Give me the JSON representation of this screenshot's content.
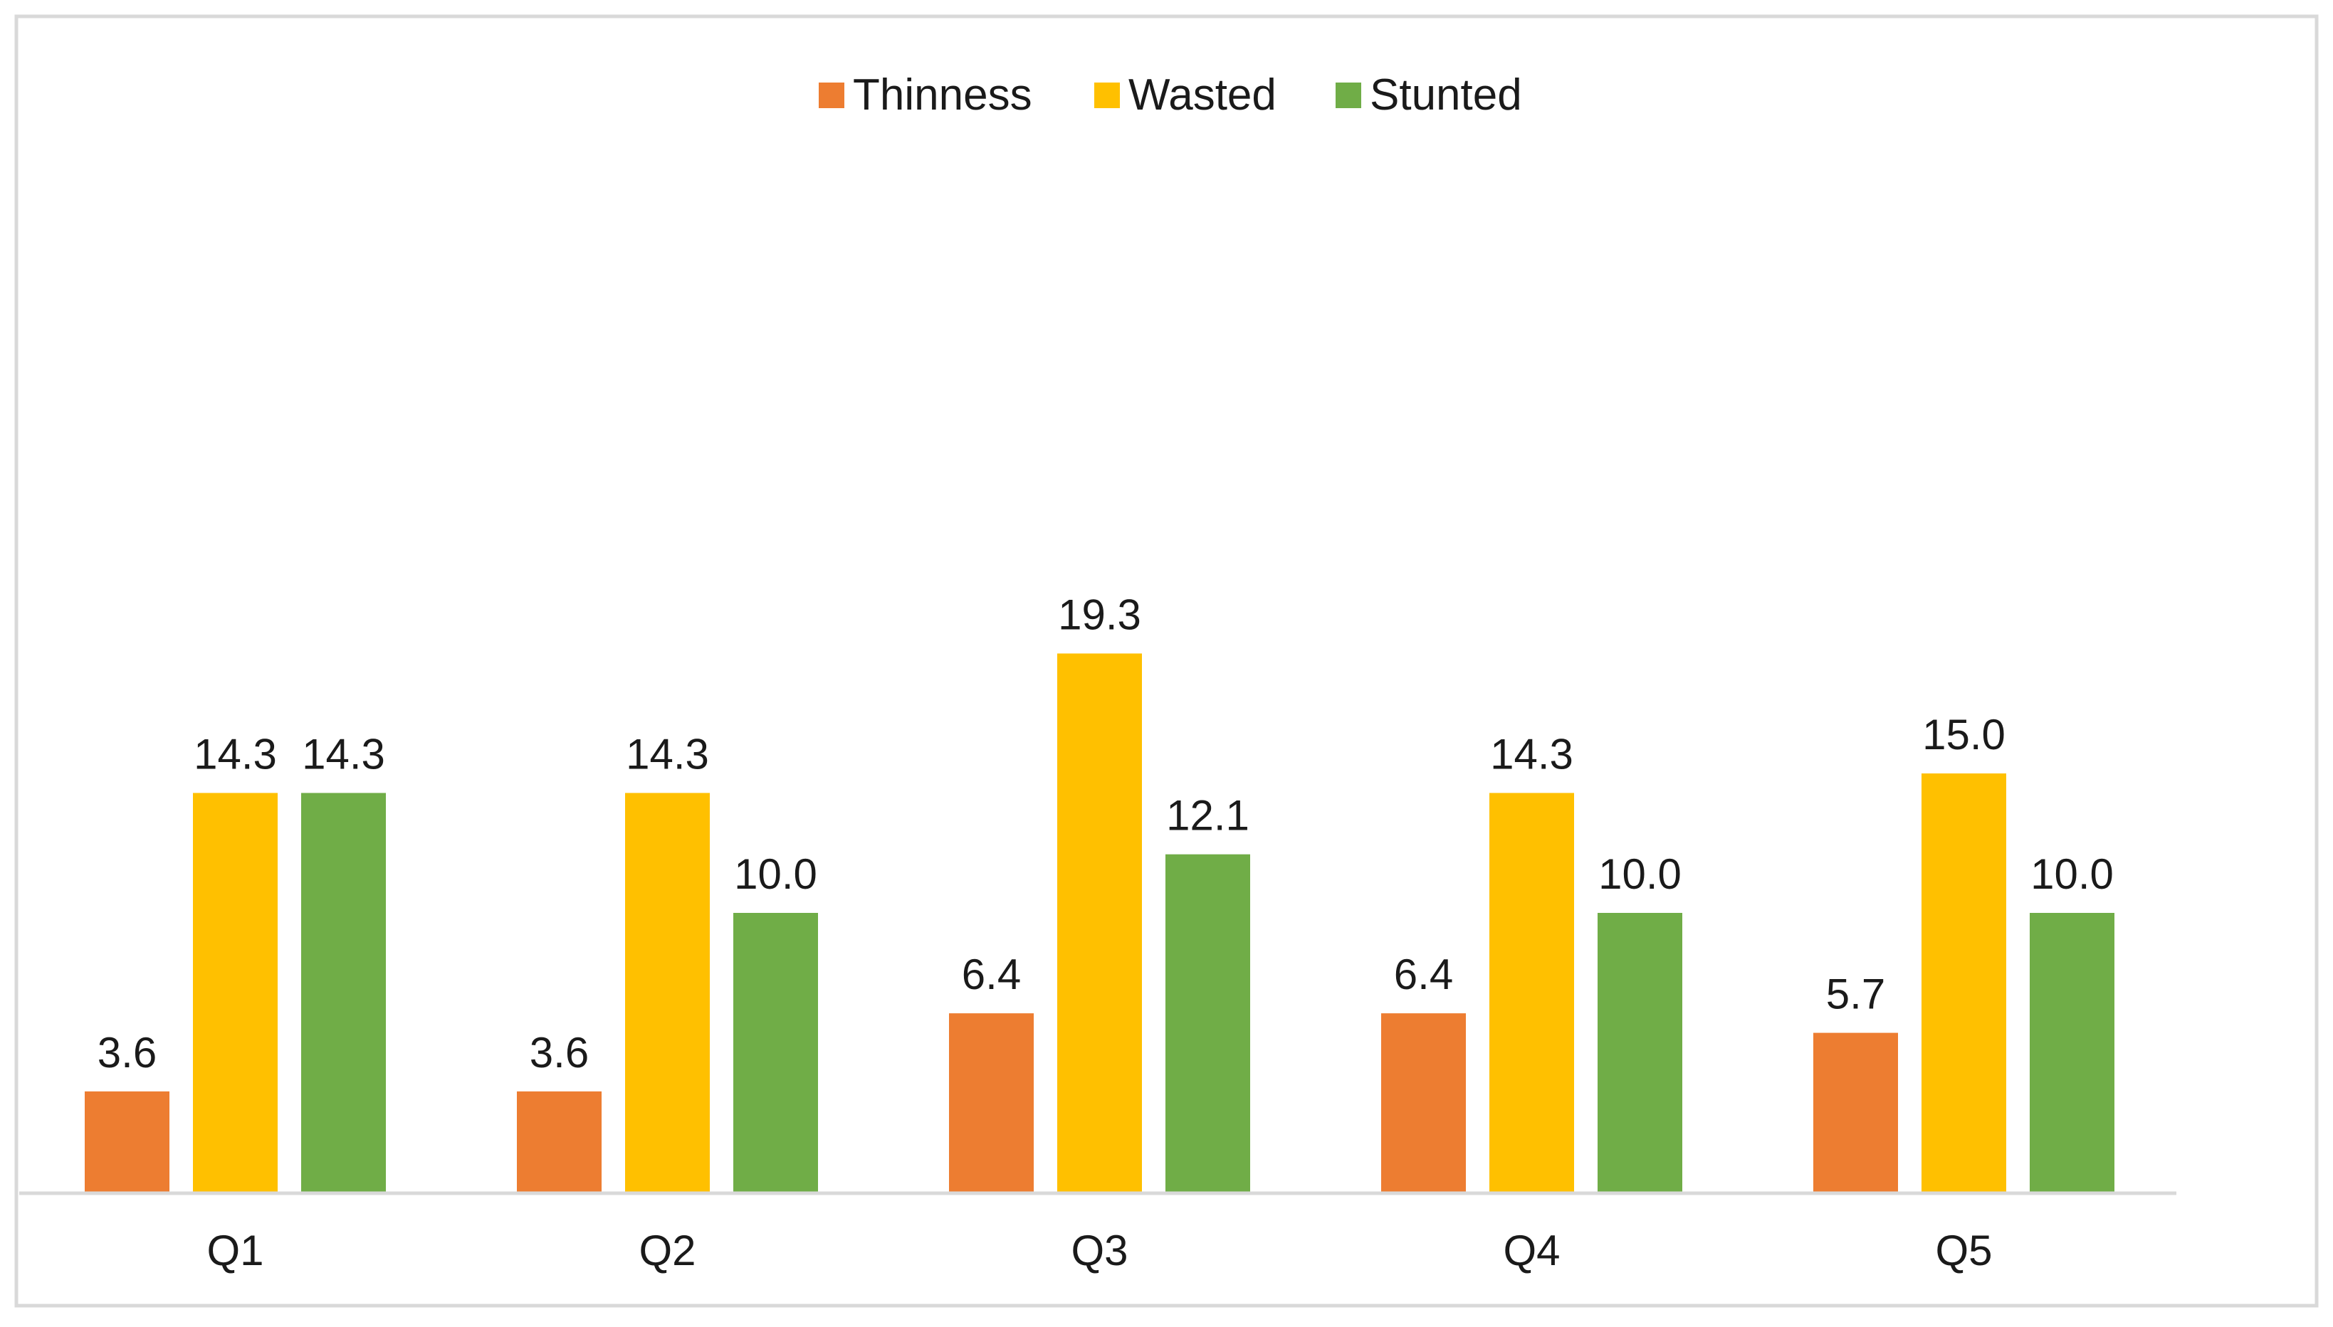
{
  "chart_data": {
    "type": "bar",
    "title": "",
    "xlabel": "",
    "ylabel": "",
    "categories": [
      "Q1",
      "Q2",
      "Q3",
      "Q4",
      "Q5"
    ],
    "ylim": [
      0,
      21
    ],
    "grid": false,
    "legend_position": "top-center",
    "series": [
      {
        "name": "Thinness",
        "color": "#ED7D31",
        "values": [
          3.6,
          3.6,
          6.4,
          6.4,
          5.7
        ],
        "labels": [
          "3.6",
          "3.6",
          "6.4",
          "6.4",
          "5.7"
        ]
      },
      {
        "name": "Wasted",
        "color": "#FFC000",
        "values": [
          14.3,
          14.3,
          19.3,
          14.3,
          15.0
        ],
        "labels": [
          "14.3",
          "14.3",
          "19.3",
          "14.3",
          "15.0"
        ]
      },
      {
        "name": "Stunted",
        "color": "#70AD47",
        "values": [
          14.3,
          10.0,
          12.1,
          10.0,
          10.0
        ],
        "labels": [
          "14.3",
          "10.0",
          "12.1",
          "10.0",
          "10.0"
        ]
      }
    ]
  }
}
